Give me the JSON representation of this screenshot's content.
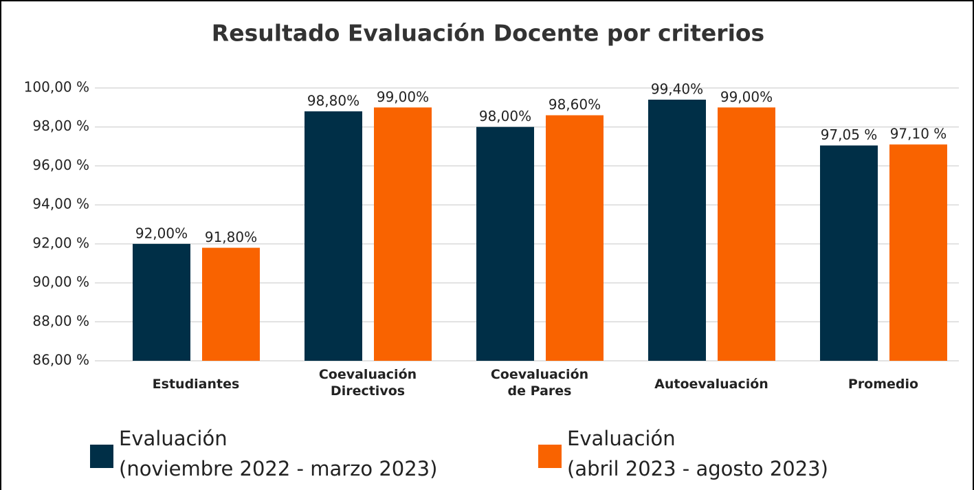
{
  "chart_data": {
    "type": "bar",
    "title": "Resultado Evaluación Docente por criterios",
    "categories": [
      "Estudiantes",
      "Coevaluación\nDirectivos",
      "Coevaluación\nde Pares",
      "Autoevaluación",
      "Promedio"
    ],
    "series": [
      {
        "name": "Evaluación\n(noviembre 2022 - marzo 2023)",
        "color": "#002f47",
        "values": [
          92.0,
          98.8,
          98.0,
          99.4,
          97.05
        ],
        "value_labels": [
          "92,00%",
          "98,80%",
          "98,00%",
          "99,40%",
          "97,05 %"
        ]
      },
      {
        "name": "Evaluación\n(abril 2023 - agosto 2023)",
        "color": "#f96300",
        "values": [
          91.8,
          99.0,
          98.6,
          99.0,
          97.1
        ],
        "value_labels": [
          "91,80%",
          "99,00%",
          "98,60%",
          "99,00%",
          "97,10 %"
        ]
      }
    ],
    "ylim": [
      86,
      100
    ],
    "yticks": [
      {
        "value": 86,
        "label": "86,00 %"
      },
      {
        "value": 88,
        "label": "88,00 %"
      },
      {
        "value": 90,
        "label": "90,00 %"
      },
      {
        "value": 92,
        "label": "92,00 %"
      },
      {
        "value": 94,
        "label": "94,00 %"
      },
      {
        "value": 96,
        "label": "96,00 %"
      },
      {
        "value": 98,
        "label": "98,00 %"
      },
      {
        "value": 100,
        "label": "100,00 %"
      }
    ],
    "grid": true,
    "legend": "bottom"
  }
}
